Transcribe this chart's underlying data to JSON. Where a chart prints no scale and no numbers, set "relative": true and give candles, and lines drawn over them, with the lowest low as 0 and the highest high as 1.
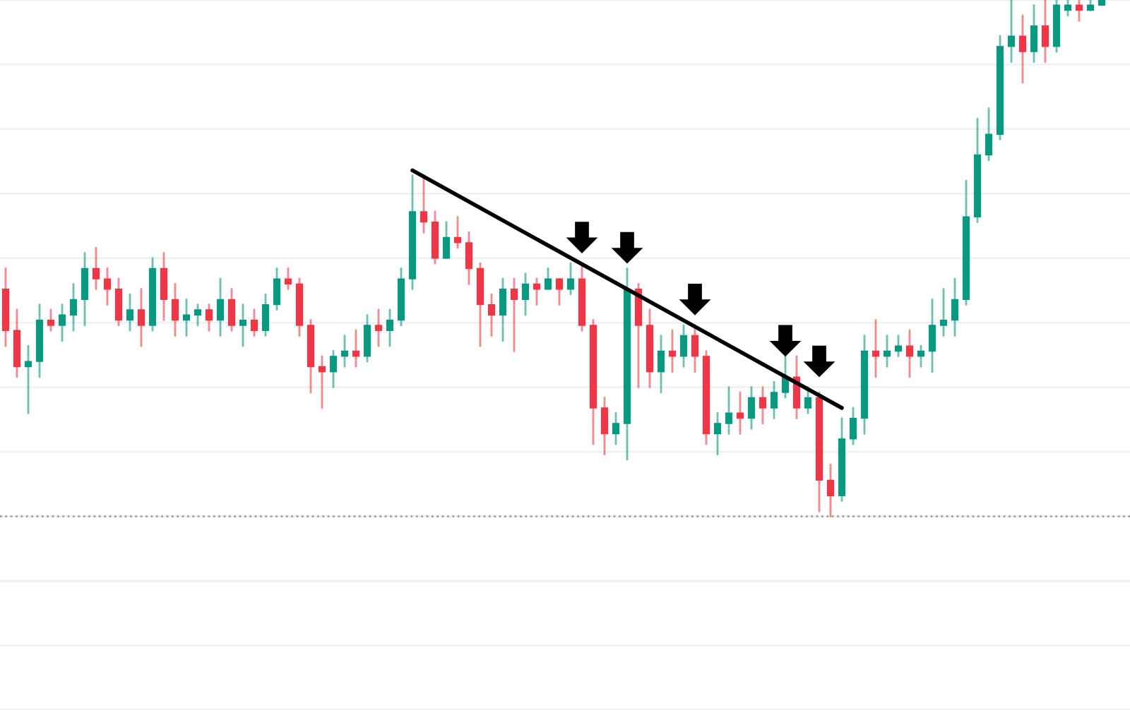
{
  "chart_data": {
    "type": "candlestick",
    "relative": true,
    "categories": [
      null,
      null,
      null,
      null,
      null,
      null,
      null,
      null,
      null,
      null,
      null,
      null,
      null,
      null,
      null,
      null,
      null,
      null,
      null,
      null,
      null,
      null,
      null,
      null,
      null,
      null,
      null,
      null,
      null,
      null,
      null,
      null,
      null,
      null,
      null,
      null,
      null,
      null,
      null,
      null,
      null,
      null,
      null,
      null,
      null,
      null,
      null,
      null,
      null,
      null,
      null,
      null,
      null,
      null,
      null,
      null,
      null,
      null,
      null,
      null,
      null,
      null,
      null,
      null,
      null,
      null,
      null,
      null,
      null,
      null,
      null,
      null,
      null,
      null,
      null,
      null,
      null,
      null,
      null,
      null,
      null,
      null,
      null,
      null,
      null,
      null,
      null,
      null,
      null,
      null,
      null,
      null,
      null,
      null,
      null,
      null,
      null,
      null
    ],
    "ohlc": [
      [
        0.44,
        0.48,
        0.33,
        0.36
      ],
      [
        0.36,
        0.4,
        0.27,
        0.29
      ],
      [
        0.29,
        0.33,
        0.2,
        0.3
      ],
      [
        0.3,
        0.41,
        0.27,
        0.38
      ],
      [
        0.38,
        0.4,
        0.36,
        0.37
      ],
      [
        0.37,
        0.41,
        0.34,
        0.39
      ],
      [
        0.39,
        0.45,
        0.36,
        0.42
      ],
      [
        0.42,
        0.51,
        0.37,
        0.48
      ],
      [
        0.48,
        0.52,
        0.44,
        0.46
      ],
      [
        0.46,
        0.48,
        0.41,
        0.44
      ],
      [
        0.44,
        0.46,
        0.37,
        0.38
      ],
      [
        0.38,
        0.43,
        0.36,
        0.4
      ],
      [
        0.4,
        0.44,
        0.33,
        0.37
      ],
      [
        0.37,
        0.5,
        0.36,
        0.48
      ],
      [
        0.48,
        0.51,
        0.38,
        0.42
      ],
      [
        0.42,
        0.45,
        0.35,
        0.38
      ],
      [
        0.38,
        0.42,
        0.35,
        0.39
      ],
      [
        0.39,
        0.41,
        0.37,
        0.4
      ],
      [
        0.4,
        0.41,
        0.36,
        0.38
      ],
      [
        0.38,
        0.46,
        0.35,
        0.42
      ],
      [
        0.42,
        0.44,
        0.36,
        0.37
      ],
      [
        0.37,
        0.41,
        0.33,
        0.38
      ],
      [
        0.38,
        0.4,
        0.35,
        0.36
      ],
      [
        0.36,
        0.43,
        0.35,
        0.41
      ],
      [
        0.41,
        0.48,
        0.4,
        0.46
      ],
      [
        0.46,
        0.48,
        0.44,
        0.45
      ],
      [
        0.45,
        0.46,
        0.35,
        0.37
      ],
      [
        0.37,
        0.38,
        0.24,
        0.29
      ],
      [
        0.29,
        0.31,
        0.21,
        0.28
      ],
      [
        0.28,
        0.32,
        0.25,
        0.31
      ],
      [
        0.31,
        0.35,
        0.29,
        0.32
      ],
      [
        0.32,
        0.36,
        0.29,
        0.31
      ],
      [
        0.31,
        0.39,
        0.3,
        0.37
      ],
      [
        0.37,
        0.4,
        0.33,
        0.36
      ],
      [
        0.36,
        0.4,
        0.33,
        0.38
      ],
      [
        0.38,
        0.48,
        0.37,
        0.46
      ],
      [
        0.46,
        0.66,
        0.44,
        0.59
      ],
      [
        0.59,
        0.66,
        0.55,
        0.57
      ],
      [
        0.57,
        0.59,
        0.49,
        0.5
      ],
      [
        0.5,
        0.57,
        0.5,
        0.54
      ],
      [
        0.54,
        0.58,
        0.52,
        0.53
      ],
      [
        0.53,
        0.55,
        0.45,
        0.48
      ],
      [
        0.48,
        0.49,
        0.33,
        0.41
      ],
      [
        0.41,
        0.43,
        0.35,
        0.39
      ],
      [
        0.39,
        0.46,
        0.34,
        0.44
      ],
      [
        0.44,
        0.46,
        0.32,
        0.42
      ],
      [
        0.42,
        0.47,
        0.39,
        0.45
      ],
      [
        0.45,
        0.46,
        0.41,
        0.44
      ],
      [
        0.44,
        0.48,
        0.44,
        0.46
      ],
      [
        0.46,
        0.46,
        0.41,
        0.44
      ],
      [
        0.44,
        0.49,
        0.43,
        0.46
      ],
      [
        0.46,
        0.49,
        0.36,
        0.37
      ],
      [
        0.37,
        0.38,
        0.14,
        0.21
      ],
      [
        0.21,
        0.23,
        0.12,
        0.16
      ],
      [
        0.16,
        0.2,
        0.14,
        0.18
      ],
      [
        0.18,
        0.48,
        0.11,
        0.44
      ],
      [
        0.44,
        0.45,
        0.25,
        0.37
      ],
      [
        0.37,
        0.4,
        0.25,
        0.28
      ],
      [
        0.28,
        0.35,
        0.24,
        0.32
      ],
      [
        0.32,
        0.36,
        0.28,
        0.31
      ],
      [
        0.31,
        0.37,
        0.29,
        0.35
      ],
      [
        0.35,
        0.37,
        0.28,
        0.31
      ],
      [
        0.31,
        0.32,
        0.14,
        0.16
      ],
      [
        0.16,
        0.2,
        0.12,
        0.18
      ],
      [
        0.18,
        0.25,
        0.16,
        0.2
      ],
      [
        0.2,
        0.24,
        0.16,
        0.19
      ],
      [
        0.19,
        0.25,
        0.17,
        0.23
      ],
      [
        0.23,
        0.25,
        0.18,
        0.21
      ],
      [
        0.21,
        0.26,
        0.19,
        0.24
      ],
      [
        0.24,
        0.31,
        0.23,
        0.27
      ],
      [
        0.27,
        0.31,
        0.19,
        0.21
      ],
      [
        0.21,
        0.25,
        0.2,
        0.23
      ],
      [
        0.23,
        0.24,
        0.01,
        0.07
      ],
      [
        0.07,
        0.1,
        0.0,
        0.04
      ],
      [
        0.04,
        0.19,
        0.03,
        0.15
      ],
      [
        0.15,
        0.21,
        0.14,
        0.19
      ],
      [
        0.19,
        0.35,
        0.16,
        0.32
      ],
      [
        0.32,
        0.38,
        0.27,
        0.31
      ],
      [
        0.31,
        0.35,
        0.29,
        0.32
      ],
      [
        0.32,
        0.35,
        0.31,
        0.33
      ],
      [
        0.33,
        0.36,
        0.27,
        0.31
      ],
      [
        0.31,
        0.33,
        0.29,
        0.32
      ],
      [
        0.32,
        0.42,
        0.28,
        0.37
      ],
      [
        0.37,
        0.44,
        0.35,
        0.38
      ],
      [
        0.38,
        0.46,
        0.35,
        0.42
      ],
      [
        0.42,
        0.65,
        0.41,
        0.58
      ],
      [
        0.58,
        0.77,
        0.57,
        0.7
      ],
      [
        0.7,
        0.79,
        0.69,
        0.74
      ],
      [
        0.74,
        0.93,
        0.73,
        0.91
      ],
      [
        0.91,
        1.0,
        0.88,
        0.93
      ],
      [
        0.93,
        0.97,
        0.84,
        0.9
      ],
      [
        0.9,
        0.99,
        0.88,
        0.95
      ],
      [
        0.95,
        1.0,
        0.88,
        0.91
      ],
      [
        0.91,
        1.0,
        0.9,
        0.99
      ],
      [
        0.98,
        1.0,
        0.97,
        0.99
      ],
      [
        0.99,
        1.0,
        0.96,
        0.98
      ],
      [
        0.98,
        1.0,
        0.98,
        0.99
      ],
      [
        0.99,
        1.0,
        0.99,
        1.0
      ]
    ],
    "colors": [
      "#f23645",
      "#f23645",
      "#089981",
      "#089981",
      "#f23645",
      "#089981",
      "#089981",
      "#089981",
      "#f23645",
      "#f23645",
      "#f23645",
      "#089981",
      "#f23645",
      "#089981",
      "#f23645",
      "#f23645",
      "#089981",
      "#089981",
      "#f23645",
      "#089981",
      "#f23645",
      "#089981",
      "#f23645",
      "#089981",
      "#089981",
      "#f23645",
      "#f23645",
      "#f23645",
      "#f23645",
      "#089981",
      "#089981",
      "#f23645",
      "#089981",
      "#f23645",
      "#089981",
      "#089981",
      "#089981",
      "#f23645",
      "#f23645",
      "#089981",
      "#f23645",
      "#f23645",
      "#f23645",
      "#f23645",
      "#089981",
      "#f23645",
      "#089981",
      "#f23645",
      "#089981",
      "#f23645",
      "#089981",
      "#f23645",
      "#f23645",
      "#f23645",
      "#089981",
      "#089981",
      "#f23645",
      "#f23645",
      "#089981",
      "#f23645",
      "#089981",
      "#f23645",
      "#f23645",
      "#089981",
      "#089981",
      "#f23645",
      "#089981",
      "#f23645",
      "#089981",
      "#089981",
      "#f23645",
      "#089981",
      "#f23645",
      "#f23645",
      "#089981",
      "#089981",
      "#089981",
      "#f23645",
      "#089981",
      "#089981",
      "#f23645",
      "#089981",
      "#089981",
      "#089981",
      "#089981",
      "#089981",
      "#089981",
      "#089981",
      "#089981",
      "#089981",
      "#f23645",
      "#089981",
      "#f23645",
      "#089981",
      "#089981",
      "#f23645",
      "#089981",
      "#089981"
    ],
    "series": [
      {
        "type": "line",
        "color": "#000000",
        "values": [
          null,
          null,
          null,
          null,
          null,
          null,
          null,
          null,
          null,
          null,
          null,
          null,
          null,
          null,
          null,
          null,
          null,
          null,
          null,
          null,
          null,
          null,
          null,
          null,
          null,
          null,
          null,
          null,
          null,
          null,
          null,
          null,
          null,
          null,
          null,
          null,
          0.67,
          null,
          null,
          null,
          null,
          null,
          null,
          null,
          null,
          null,
          null,
          null,
          null,
          null,
          null,
          null,
          null,
          null,
          null,
          null,
          null,
          null,
          null,
          null,
          null,
          null,
          null,
          null,
          null,
          null,
          null,
          null,
          null,
          null,
          null,
          null,
          null,
          null,
          0.21,
          null,
          null,
          null,
          null,
          null,
          null,
          null,
          null,
          null,
          null,
          null,
          null,
          null,
          null,
          null,
          null,
          null,
          null,
          null,
          null,
          null,
          null,
          null
        ]
      },
      {
        "type": "scatter",
        "marker": "triangle",
        "color": "#000000",
        "values": [
          null,
          null,
          null,
          null,
          null,
          null,
          null,
          null,
          null,
          null,
          null,
          null,
          null,
          null,
          null,
          null,
          null,
          null,
          null,
          null,
          null,
          null,
          null,
          null,
          null,
          null,
          null,
          null,
          null,
          null,
          null,
          null,
          null,
          null,
          null,
          null,
          null,
          null,
          null,
          null,
          null,
          null,
          null,
          null,
          null,
          null,
          null,
          null,
          null,
          null,
          null,
          0.54,
          null,
          null,
          null,
          0.52,
          null,
          null,
          null,
          null,
          null,
          0.42,
          null,
          null,
          null,
          null,
          null,
          null,
          null,
          0.34,
          null,
          null,
          0.3,
          null,
          null,
          null,
          null,
          null,
          null,
          null,
          null,
          null,
          null,
          null,
          null,
          null,
          null,
          null,
          null,
          null,
          null,
          null,
          null,
          null,
          null,
          null,
          null,
          null
        ]
      }
    ],
    "ref_lines": [
      {
        "axis": "y",
        "value": 0.0,
        "color": "#9e9e9e",
        "line_style": "dotted"
      }
    ],
    "grid": true
  }
}
